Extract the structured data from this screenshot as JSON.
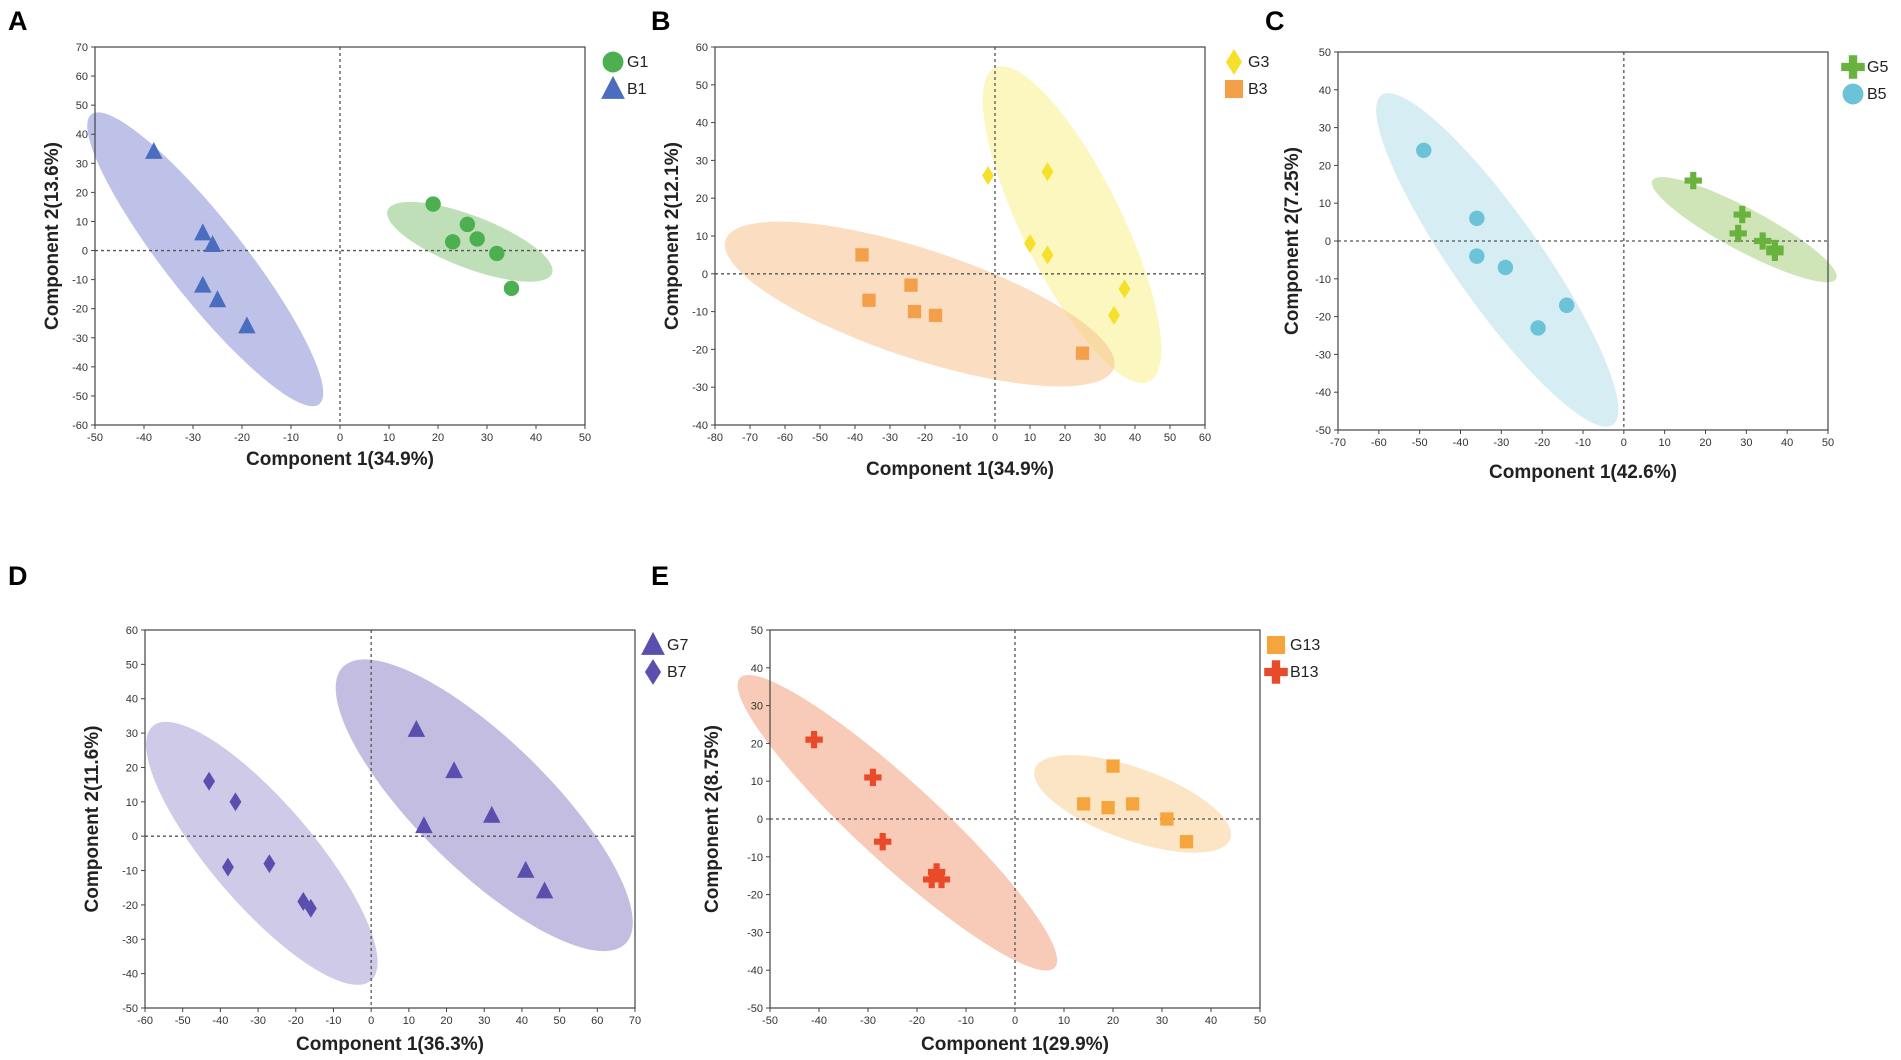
{
  "chart_data": [
    {
      "type": "scatter",
      "panel_label": "A",
      "xlabel": "Component 1(34.9%)",
      "ylabel": "Component 2(13.6%)",
      "xlim": [
        -50,
        50
      ],
      "ylim": [
        -60,
        70
      ],
      "xticks": [
        -50,
        -40,
        -30,
        -20,
        -10,
        0,
        10,
        20,
        30,
        40,
        50
      ],
      "yticks": [
        -60,
        -50,
        -40,
        -30,
        -20,
        -10,
        0,
        10,
        20,
        30,
        40,
        50,
        60,
        70
      ],
      "legend_position": "top-right",
      "series": [
        {
          "name": "G1",
          "marker": "circle",
          "color": "#4caf50",
          "ellipse_color": "#8ac47e",
          "points": [
            [
              19,
              16
            ],
            [
              23,
              3
            ],
            [
              26,
              9
            ],
            [
              28,
              4
            ],
            [
              32,
              -1
            ],
            [
              35,
              -13
            ]
          ],
          "ellipse": {
            "cx": 26.5,
            "cy": 3,
            "rx": 20,
            "ry": 7.2,
            "angle": -33
          }
        },
        {
          "name": "B1",
          "marker": "triangle",
          "color": "#4a6dc0",
          "ellipse_color": "#8a8fd6",
          "points": [
            [
              -38,
              34
            ],
            [
              -28,
              6
            ],
            [
              -26,
              2
            ],
            [
              -28,
              -12
            ],
            [
              -25,
              -17
            ],
            [
              -19,
              -26
            ]
          ],
          "ellipse": {
            "cx": -27.5,
            "cy": -3,
            "rx": 55,
            "ry": 8.5,
            "angle": -65
          }
        }
      ]
    },
    {
      "type": "scatter",
      "panel_label": "B",
      "xlabel": "Component 1(34.9%)",
      "ylabel": "Component 2(12.1%)",
      "xlim": [
        -80,
        60
      ],
      "ylim": [
        -40,
        60
      ],
      "xticks": [
        -80,
        -70,
        -60,
        -50,
        -40,
        -30,
        -20,
        -10,
        0,
        10,
        20,
        30,
        40,
        50,
        60
      ],
      "yticks": [
        -40,
        -30,
        -20,
        -10,
        0,
        10,
        20,
        30,
        40,
        50,
        60
      ],
      "legend_position": "top-right",
      "series": [
        {
          "name": "G3",
          "marker": "diamond",
          "color": "#f5e02a",
          "ellipse_color": "#f8f08a",
          "points": [
            [
              -2,
              26
            ],
            [
              15,
              27
            ],
            [
              10,
              8
            ],
            [
              15,
              5
            ],
            [
              37,
              -4
            ],
            [
              34,
              -11
            ]
          ],
          "ellipse": {
            "cx": 22,
            "cy": 13,
            "rx": 47,
            "ry": 14,
            "angle": -62
          }
        },
        {
          "name": "B3",
          "marker": "square",
          "color": "#f4a04a",
          "ellipse_color": "#f7c28e",
          "points": [
            [
              -38,
              5
            ],
            [
              -36,
              -7
            ],
            [
              -24,
              -3
            ],
            [
              -23,
              -10
            ],
            [
              -17,
              -11
            ],
            [
              25,
              -21
            ]
          ],
          "ellipse": {
            "cx": -21.5,
            "cy": -8,
            "rx": 58,
            "ry": 14.5,
            "angle": -17
          }
        }
      ]
    },
    {
      "type": "scatter",
      "panel_label": "C",
      "xlabel": "Component 1(42.6%)",
      "ylabel": "Component 2(7.25%)",
      "xlim": [
        -70,
        50
      ],
      "ylim": [
        -50,
        50
      ],
      "xticks": [
        -70,
        -60,
        -50,
        -40,
        -30,
        -20,
        -10,
        0,
        10,
        20,
        30,
        40,
        50
      ],
      "yticks": [
        -50,
        -40,
        -30,
        -20,
        -10,
        0,
        10,
        20,
        30,
        40,
        50
      ],
      "legend_position": "top-right",
      "series": [
        {
          "name": "G5",
          "marker": "plus",
          "color": "#6ab23e",
          "ellipse_color": "#a7d07d",
          "points": [
            [
              17,
              16
            ],
            [
              29,
              7
            ],
            [
              28,
              2
            ],
            [
              34,
              0
            ],
            [
              37,
              -2
            ],
            [
              37,
              -3
            ]
          ],
          "ellipse": {
            "cx": 29.5,
            "cy": 3,
            "rx": 26,
            "ry": 5.5,
            "angle": -30
          }
        },
        {
          "name": "B5",
          "marker": "circle",
          "color": "#6cc3d8",
          "ellipse_color": "#b2dfe9",
          "points": [
            [
              -49,
              24
            ],
            [
              -36,
              6
            ],
            [
              -36,
              -4
            ],
            [
              -29,
              -7
            ],
            [
              -21,
              -23
            ],
            [
              -14,
              -17
            ]
          ],
          "ellipse": {
            "cx": -31,
            "cy": -5,
            "rx": 52,
            "ry": 11,
            "angle": -57
          }
        }
      ]
    },
    {
      "type": "scatter",
      "panel_label": "D",
      "xlabel": "Component 1(36.3%)",
      "ylabel": "Component 2(11.6%)",
      "xlim": [
        -60,
        70
      ],
      "ylim": [
        -50,
        60
      ],
      "xticks": [
        -60,
        -50,
        -40,
        -30,
        -20,
        -10,
        0,
        10,
        20,
        30,
        40,
        50,
        60,
        70
      ],
      "yticks": [
        -50,
        -40,
        -30,
        -20,
        -10,
        0,
        10,
        20,
        30,
        40,
        50,
        60
      ],
      "legend_position": "top-right",
      "series": [
        {
          "name": "G7",
          "marker": "triangle",
          "color": "#5a4fae",
          "ellipse_color": "#8f86c9",
          "points": [
            [
              12,
              31
            ],
            [
              22,
              19
            ],
            [
              14,
              3
            ],
            [
              32,
              6
            ],
            [
              41,
              -10
            ],
            [
              46,
              -16
            ]
          ],
          "ellipse": {
            "cx": 30,
            "cy": 9,
            "rx": 55,
            "ry": 18,
            "angle": -47
          }
        },
        {
          "name": "B7",
          "marker": "diamond",
          "color": "#5a4fae",
          "ellipse_color": "#a59fd6",
          "points": [
            [
              -43,
              16
            ],
            [
              -36,
              10
            ],
            [
              -38,
              -9
            ],
            [
              -27,
              -8
            ],
            [
              -18,
              -19
            ],
            [
              -16,
              -21
            ]
          ],
          "ellipse": {
            "cx": -29,
            "cy": -5,
            "rx": 47,
            "ry": 14,
            "angle": -52
          }
        }
      ]
    },
    {
      "type": "scatter",
      "panel_label": "E",
      "xlabel": "Component 1(29.9%)",
      "ylabel": "Component 2(8.75%)",
      "xlim": [
        -50,
        50
      ],
      "ylim": [
        -50,
        50
      ],
      "xticks": [
        -50,
        -40,
        -30,
        -20,
        -10,
        0,
        10,
        20,
        30,
        40,
        50
      ],
      "yticks": [
        -50,
        -40,
        -30,
        -20,
        -10,
        0,
        10,
        20,
        30,
        40,
        50
      ],
      "legend_position": "top-right",
      "series": [
        {
          "name": "G13",
          "marker": "square",
          "color": "#f5a53c",
          "ellipse_color": "#f8cf96",
          "points": [
            [
              14,
              4
            ],
            [
              20,
              14
            ],
            [
              19,
              3
            ],
            [
              24,
              4
            ],
            [
              31,
              0
            ],
            [
              35,
              -6
            ]
          ],
          "ellipse": {
            "cx": 24,
            "cy": 4,
            "rx": 22,
            "ry": 9,
            "angle": -25
          }
        },
        {
          "name": "B13",
          "marker": "plus",
          "color": "#e84a2a",
          "ellipse_color": "#f0a07e",
          "points": [
            [
              -41,
              21
            ],
            [
              -29,
              11
            ],
            [
              -27,
              -6
            ],
            [
              -17,
              -16
            ],
            [
              -16,
              -14
            ],
            [
              -15,
              -16
            ]
          ],
          "ellipse": {
            "cx": -24,
            "cy": -1,
            "rx": 50,
            "ry": 9,
            "angle": -50
          }
        }
      ]
    }
  ]
}
